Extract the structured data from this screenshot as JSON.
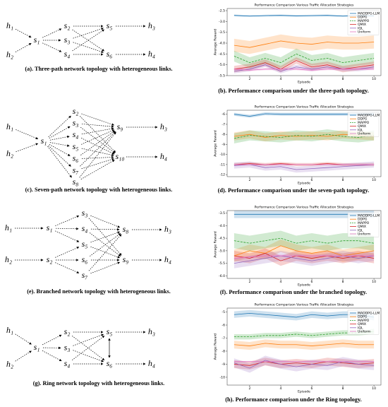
{
  "diagrams": [
    {
      "caption": "(a). Three-path network topology with heterogeneous links.",
      "nodes": [
        "h₁",
        "h₂",
        "s₁",
        "s₂",
        "s₃",
        "s₄",
        "s₅",
        "s₆",
        "h₃",
        "h₄"
      ]
    },
    {
      "caption": "(c). Seven-path network topology with heterogeneous links.",
      "nodes": [
        "h₁",
        "h₂",
        "s₁",
        "s₂",
        "s₃",
        "s₄",
        "s₅",
        "s₆",
        "s₇",
        "s₈",
        "s₉",
        "s₁₀",
        "h₃",
        "h₄"
      ]
    },
    {
      "caption": "(e). Branched network topology with heterogeneous links.",
      "nodes": [
        "h₁",
        "h₂",
        "s₁",
        "s₂",
        "s₃",
        "s₄",
        "s₅",
        "s₆",
        "s₇",
        "s₈",
        "s₉",
        "h₃",
        "h₄"
      ]
    },
    {
      "caption": "(g). Ring network topology with heterogeneous links.",
      "nodes": [
        "h₁",
        "h₂",
        "s₁",
        "s₂",
        "s₃",
        "s₄",
        "s₅",
        "s₆",
        "h₃",
        "h₄"
      ]
    }
  ],
  "chart_data": [
    {
      "type": "line",
      "title": "Performance Comparison Various Traffic Allocation Strategies",
      "caption": "(b). Performance comparison under the three-path topology.",
      "xlabel": "Episode",
      "ylabel": "Average Reward",
      "legend": "upper right",
      "x": [
        1,
        2,
        3,
        4,
        5,
        6,
        7,
        8,
        9,
        10
      ],
      "xlim": [
        0.55,
        10.45
      ],
      "xticks": [
        2,
        4,
        6,
        8,
        10
      ],
      "ylim": [
        -5.5,
        -2.4
      ],
      "yticks": [
        -2.5,
        {
          "value": -3,
          "label": "-3.0"
        },
        -3.5,
        {
          "value": -4,
          "label": "-4.0"
        },
        -4.5,
        {
          "value": -5,
          "label": "-5.0"
        },
        -5.5
      ],
      "series": [
        {
          "name": "MADDPG-LLM",
          "color": "#1f77b4",
          "linestyle": "solid",
          "values": [
            -2.72,
            -2.75,
            -2.73,
            -2.72,
            -2.74,
            -2.73,
            -2.72,
            -2.75,
            -2.73,
            -2.74
          ],
          "std": [
            0.04,
            0.04,
            0.04,
            0.04,
            0.04,
            0.04,
            0.04,
            0.04,
            0.04,
            0.04
          ]
        },
        {
          "name": "DDPG",
          "color": "#ff7f0e",
          "linestyle": "solid",
          "values": [
            -4.1,
            -4.2,
            -4.05,
            -3.9,
            -4.0,
            -4.05,
            -3.95,
            -4.0,
            -4.0,
            -3.95
          ],
          "std": [
            0.3,
            0.3,
            0.3,
            0.3,
            0.3,
            0.3,
            0.3,
            0.3,
            0.3,
            0.3
          ]
        },
        {
          "name": "MAPPO",
          "color": "#2ca02c",
          "linestyle": "dashed",
          "values": [
            -4.6,
            -4.9,
            -4.7,
            -4.9,
            -4.5,
            -4.8,
            -4.7,
            -4.9,
            -4.8,
            -4.7
          ],
          "std": [
            0.25,
            0.25,
            0.25,
            0.25,
            0.25,
            0.25,
            0.25,
            0.25,
            0.25,
            0.25
          ]
        },
        {
          "name": "QMIX",
          "color": "#d62728",
          "linestyle": "solid",
          "values": [
            -5.2,
            -5.1,
            -4.9,
            -5.2,
            -4.8,
            -5.1,
            -5.0,
            -5.2,
            -5.1,
            -5.0
          ],
          "std": [
            0.15,
            0.15,
            0.15,
            0.15,
            0.15,
            0.15,
            0.15,
            0.15,
            0.15,
            0.15
          ]
        },
        {
          "name": "IQL",
          "color": "#9467bd",
          "linestyle": "solid",
          "values": [
            -5.3,
            -5.2,
            -5.0,
            -5.3,
            -5.1,
            -5.2,
            -5.1,
            -5.2,
            -5.2,
            -5.1
          ],
          "std": [
            0.1,
            0.1,
            0.1,
            0.1,
            0.1,
            0.1,
            0.1,
            0.1,
            0.1,
            0.1
          ]
        },
        {
          "name": "Uniform",
          "color": "#e377c2",
          "linestyle": "solid",
          "values": [
            -5.2,
            -5.25,
            -5.2,
            -5.2,
            -5.2,
            -5.25,
            -5.2,
            -5.2,
            -5.2,
            -5.2
          ],
          "std": [
            0.05,
            0.05,
            0.05,
            0.05,
            0.05,
            0.05,
            0.05,
            0.05,
            0.05,
            0.05
          ]
        }
      ]
    },
    {
      "type": "line",
      "title": "Performance Comparison Various Traffic Allocation Strategies",
      "caption": "(d). Performance comparison under the seven-path topology.",
      "xlabel": "Episode",
      "ylabel": "Average Reward",
      "legend": "upper right",
      "x": [
        1,
        2,
        3,
        4,
        5,
        6,
        7,
        8,
        9,
        10
      ],
      "xlim": [
        0.55,
        10.45
      ],
      "xticks": [
        2,
        4,
        6,
        8,
        10
      ],
      "ylim": [
        -12.2,
        -5.6
      ],
      "yticks": [
        -6,
        -7,
        -8,
        -9,
        -10,
        -11,
        -12
      ],
      "series": [
        {
          "name": "MADDPG-LLM",
          "color": "#1f77b4",
          "linestyle": "solid",
          "values": [
            -6.0,
            -6.2,
            -5.95,
            -6.0,
            -6.0,
            -6.0,
            -6.0,
            -6.0,
            -6.0,
            -6.0
          ],
          "std": [
            0.15,
            0.15,
            0.15,
            0.15,
            0.15,
            0.15,
            0.15,
            0.15,
            0.15,
            0.15
          ]
        },
        {
          "name": "DDPG",
          "color": "#ff7f0e",
          "linestyle": "solid",
          "values": [
            -8.2,
            -8.0,
            -8.3,
            -8.1,
            -8.2,
            -8.1,
            -8.2,
            -8.0,
            -8.1,
            -8.2
          ],
          "std": [
            0.4,
            0.4,
            0.4,
            0.4,
            0.4,
            0.4,
            0.4,
            0.4,
            0.4,
            0.4
          ]
        },
        {
          "name": "MAPPO",
          "color": "#2ca02c",
          "linestyle": "dashed",
          "values": [
            -8.4,
            -8.1,
            -8.2,
            -8.3,
            -8.1,
            -8.2,
            -8.0,
            -8.2,
            -8.3,
            -8.1
          ],
          "std": [
            0.5,
            0.5,
            0.5,
            0.5,
            0.5,
            0.5,
            0.5,
            0.5,
            0.5,
            0.5
          ]
        },
        {
          "name": "QMIX",
          "color": "#d62728",
          "linestyle": "solid",
          "values": [
            -11.0,
            -10.9,
            -11.0,
            -10.9,
            -11.0,
            -11.0,
            -10.9,
            -11.0,
            -11.0,
            -11.0
          ],
          "std": [
            0.15,
            0.15,
            0.15,
            0.15,
            0.15,
            0.15,
            0.15,
            0.15,
            0.15,
            0.15
          ]
        },
        {
          "name": "IQL",
          "color": "#9467bd",
          "linestyle": "solid",
          "values": [
            -11.1,
            -11.0,
            -11.3,
            -11.2,
            -11.5,
            -11.4,
            -11.3,
            -11.2,
            -11.1,
            -11.0
          ],
          "std": [
            0.3,
            0.3,
            0.3,
            0.3,
            0.3,
            0.3,
            0.3,
            0.3,
            0.3,
            0.3
          ]
        },
        {
          "name": "Uniform",
          "color": "#e377c2",
          "linestyle": "solid",
          "values": [
            -11.0,
            -11.0,
            -11.0,
            -11.0,
            -11.0,
            -11.0,
            -11.0,
            -11.0,
            -11.0,
            -11.0
          ],
          "std": [
            0.05,
            0.05,
            0.05,
            0.05,
            0.05,
            0.05,
            0.05,
            0.05,
            0.05,
            0.05
          ]
        }
      ]
    },
    {
      "type": "line",
      "title": "Performance Comparison Various Traffic Allocation Strategies",
      "caption": "(f). Performance comparison under the branched topology.",
      "xlabel": "Episode",
      "ylabel": "Average Reward",
      "legend": "upper right",
      "x": [
        1,
        2,
        3,
        4,
        5,
        6,
        7,
        8,
        9,
        10
      ],
      "xlim": [
        0.55,
        10.45
      ],
      "xticks": [
        2,
        4,
        6,
        8,
        10
      ],
      "ylim": [
        -6.1,
        -3.4
      ],
      "yticks": [
        -3.5,
        {
          "value": -4,
          "label": "-4.0"
        },
        -4.5,
        {
          "value": -5,
          "label": "-5.0"
        },
        -5.5,
        {
          "value": -6,
          "label": "-6.0"
        }
      ],
      "series": [
        {
          "name": "MADDPG-LLM",
          "color": "#1f77b4",
          "linestyle": "solid",
          "values": [
            -3.55,
            -3.55,
            -3.55,
            -3.55,
            -3.55,
            -3.55,
            -3.55,
            -3.55,
            -3.55,
            -3.55
          ],
          "std": [
            0.15,
            0.15,
            0.15,
            0.15,
            0.15,
            0.15,
            0.15,
            0.15,
            0.15,
            0.15
          ]
        },
        {
          "name": "DDPG",
          "color": "#ff7f0e",
          "linestyle": "solid",
          "values": [
            -5.2,
            -5.0,
            -5.1,
            -4.8,
            -5.0,
            -5.1,
            -5.0,
            -5.2,
            -5.1,
            -5.0
          ],
          "std": [
            0.25,
            0.25,
            0.25,
            0.25,
            0.25,
            0.25,
            0.25,
            0.25,
            0.25,
            0.25
          ]
        },
        {
          "name": "MAPPO",
          "color": "#2ca02c",
          "linestyle": "dashed",
          "values": [
            -4.6,
            -4.7,
            -4.6,
            -4.5,
            -4.7,
            -4.6,
            -4.7,
            -4.6,
            -4.6,
            -4.7
          ],
          "std": [
            0.3,
            0.3,
            0.3,
            0.3,
            0.3,
            0.3,
            0.3,
            0.3,
            0.3,
            0.3
          ]
        },
        {
          "name": "QMIX",
          "color": "#d62728",
          "linestyle": "solid",
          "values": [
            -5.2,
            -5.3,
            -5.1,
            -5.4,
            -5.2,
            -5.3,
            -5.2,
            -5.3,
            -5.2,
            -5.3
          ],
          "std": [
            0.2,
            0.2,
            0.2,
            0.2,
            0.2,
            0.2,
            0.2,
            0.2,
            0.2,
            0.2
          ]
        },
        {
          "name": "IQL",
          "color": "#9467bd",
          "linestyle": "solid",
          "values": [
            -5.5,
            -5.4,
            -5.3,
            -5.2,
            -5.3,
            -5.4,
            -5.3,
            -5.2,
            -5.3,
            -5.2
          ],
          "std": [
            0.2,
            0.2,
            0.2,
            0.2,
            0.2,
            0.2,
            0.2,
            0.2,
            0.2,
            0.2
          ]
        },
        {
          "name": "Uniform",
          "color": "#e377c2",
          "linestyle": "solid",
          "values": [
            -5.3,
            -5.25,
            -5.2,
            -5.2,
            -5.2,
            -5.2,
            -5.2,
            -5.2,
            -5.2,
            -5.2
          ],
          "std": [
            0.05,
            0.05,
            0.05,
            0.05,
            0.05,
            0.05,
            0.05,
            0.05,
            0.05,
            0.05
          ]
        }
      ]
    },
    {
      "type": "line",
      "title": "Performance Comparison Various Traffic Allocation Strategies",
      "caption": "(h). Performance comparison under the Ring topology.",
      "xlabel": "Episode",
      "ylabel": "Average Reward",
      "legend": "upper right",
      "x": [
        1,
        2,
        3,
        4,
        5,
        6,
        7,
        8,
        9,
        10
      ],
      "xlim": [
        0.55,
        10.45
      ],
      "xticks": [
        2,
        4,
        6,
        8,
        10
      ],
      "ylim": [
        -10.6,
        -4.7
      ],
      "yticks": [
        -5,
        -6,
        -7,
        -8,
        -9,
        -10
      ],
      "series": [
        {
          "name": "MADDPG-LLM",
          "color": "#1f77b4",
          "linestyle": "solid",
          "values": [
            -5.2,
            -5.1,
            -5.2,
            -5.3,
            -5.4,
            -5.2,
            -5.3,
            -5.2,
            -5.2,
            -5.4
          ],
          "std": [
            0.25,
            0.25,
            0.25,
            0.25,
            0.25,
            0.25,
            0.25,
            0.25,
            0.25,
            0.25
          ]
        },
        {
          "name": "DDPG",
          "color": "#ff7f0e",
          "linestyle": "solid",
          "values": [
            -7.5,
            -7.6,
            -7.4,
            -7.5,
            -7.5,
            -7.6,
            -7.5,
            -7.4,
            -7.5,
            -7.5
          ],
          "std": [
            0.3,
            0.3,
            0.3,
            0.3,
            0.3,
            0.3,
            0.3,
            0.3,
            0.3,
            0.3
          ]
        },
        {
          "name": "MAPPO",
          "color": "#2ca02c",
          "linestyle": "dashed",
          "values": [
            -6.9,
            -6.9,
            -6.8,
            -6.8,
            -6.7,
            -6.8,
            -6.7,
            -6.6,
            -6.6,
            -6.5
          ],
          "std": [
            0.2,
            0.2,
            0.2,
            0.2,
            0.2,
            0.2,
            0.2,
            0.2,
            0.2,
            0.2
          ]
        },
        {
          "name": "QMIX",
          "color": "#d62728",
          "linestyle": "solid",
          "values": [
            -9.0,
            -9.1,
            -8.8,
            -9.0,
            -8.9,
            -9.0,
            -8.8,
            -8.9,
            -9.0,
            -8.9
          ],
          "std": [
            0.3,
            0.3,
            0.3,
            0.3,
            0.3,
            0.3,
            0.3,
            0.3,
            0.3,
            0.3
          ]
        },
        {
          "name": "IQL",
          "color": "#9467bd",
          "linestyle": "solid",
          "values": [
            -8.9,
            -9.3,
            -8.7,
            -9.0,
            -9.2,
            -9.0,
            -9.1,
            -8.8,
            -9.0,
            -9.1
          ],
          "std": [
            0.35,
            0.35,
            0.35,
            0.35,
            0.35,
            0.35,
            0.35,
            0.35,
            0.35,
            0.35
          ]
        },
        {
          "name": "Uniform",
          "color": "#e377c2",
          "linestyle": "solid",
          "values": [
            -8.8,
            -8.8,
            -8.8,
            -8.8,
            -8.8,
            -8.8,
            -8.8,
            -8.8,
            -8.8,
            -8.8
          ],
          "std": [
            0.05,
            0.05,
            0.05,
            0.05,
            0.05,
            0.05,
            0.05,
            0.05,
            0.05,
            0.05
          ]
        }
      ]
    }
  ]
}
